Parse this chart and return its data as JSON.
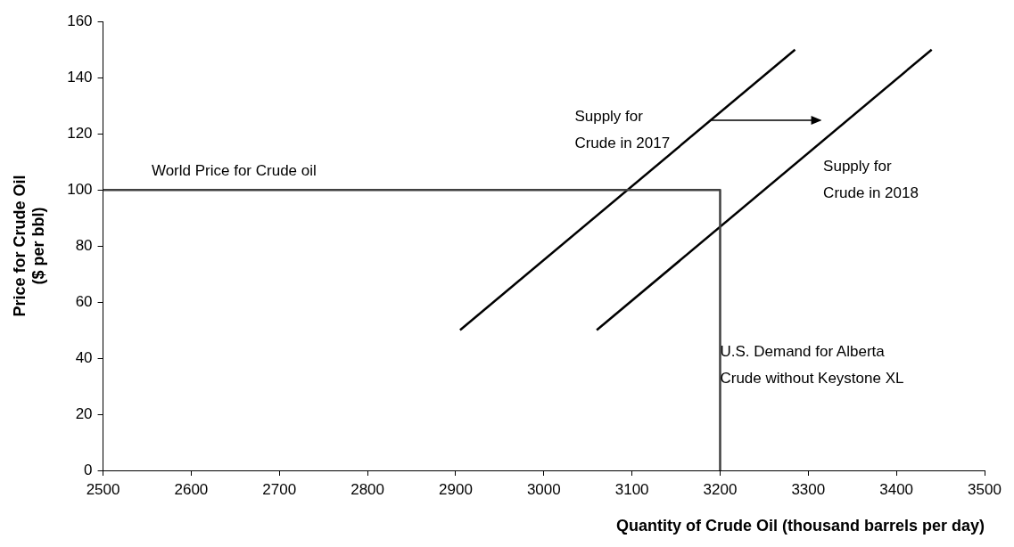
{
  "chart_data": {
    "type": "line",
    "xlabel": "Quantity of Crude Oil (thousand barrels per day)",
    "ylabel": "Price for Crude Oil\n($ per bbl)",
    "series": [
      {
        "color": "#404040",
        "x": [
          2500,
          3200
        ],
        "values": [
          100,
          100
        ]
      },
      {
        "color": "#404040",
        "x": [
          3200,
          3200
        ],
        "values": [
          100,
          0
        ]
      },
      {
        "color": "#000000",
        "x": [
          2905,
          3285
        ],
        "values": [
          50,
          150
        ]
      },
      {
        "color": "#000000",
        "x": [
          3060,
          3440
        ],
        "values": [
          50,
          150
        ]
      }
    ],
    "xlim": [
      2500,
      3500
    ],
    "xticks": [
      2500,
      2600,
      2700,
      2800,
      2900,
      3000,
      3100,
      3200,
      3300,
      3400,
      3500
    ],
    "ylim": [
      0,
      160
    ],
    "yticks": [
      0,
      20,
      40,
      60,
      80,
      100,
      120,
      140,
      160
    ],
    "grid": false,
    "legend": false,
    "marker": "none",
    "line_style": "solid",
    "annotations": [
      "World Price for Crude oil",
      "Supply for\nCrude in 2017",
      "Supply for\nCrude in 2018",
      "U.S. Demand for Alberta\nCrude without Keystone XL"
    ]
  }
}
